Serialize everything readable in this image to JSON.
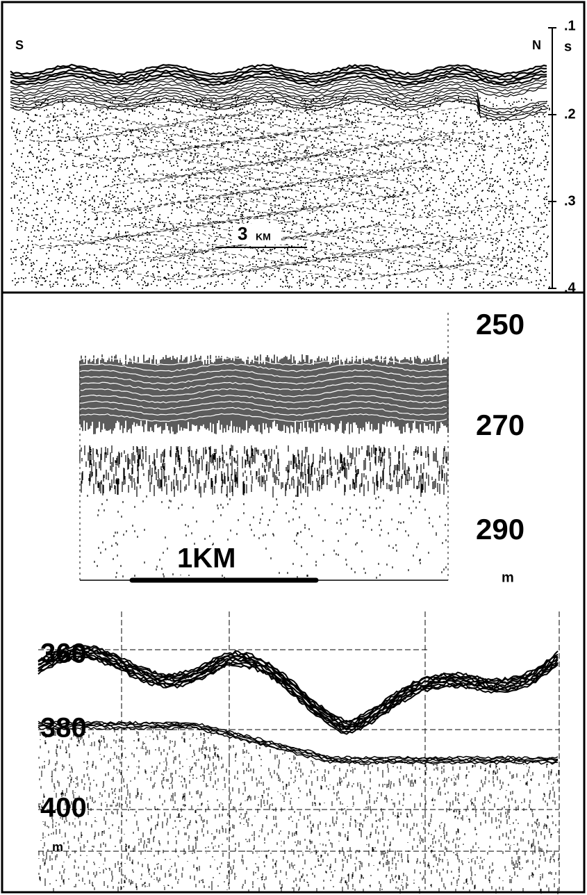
{
  "top_profile": {
    "left_label": "S",
    "right_label": "N",
    "axis_unit": "s",
    "axis_labels": [
      ".1",
      ".2",
      ".3",
      ".4"
    ],
    "scale_bar": {
      "number": "3",
      "unit": "KM"
    }
  },
  "middle_profile": {
    "depth_labels": [
      "250",
      "270",
      "290"
    ],
    "depth_unit": "m",
    "scale_bar": "1KM"
  },
  "bottom_profile": {
    "depth_labels": [
      "360",
      "380",
      "400"
    ],
    "depth_unit": "m"
  }
}
